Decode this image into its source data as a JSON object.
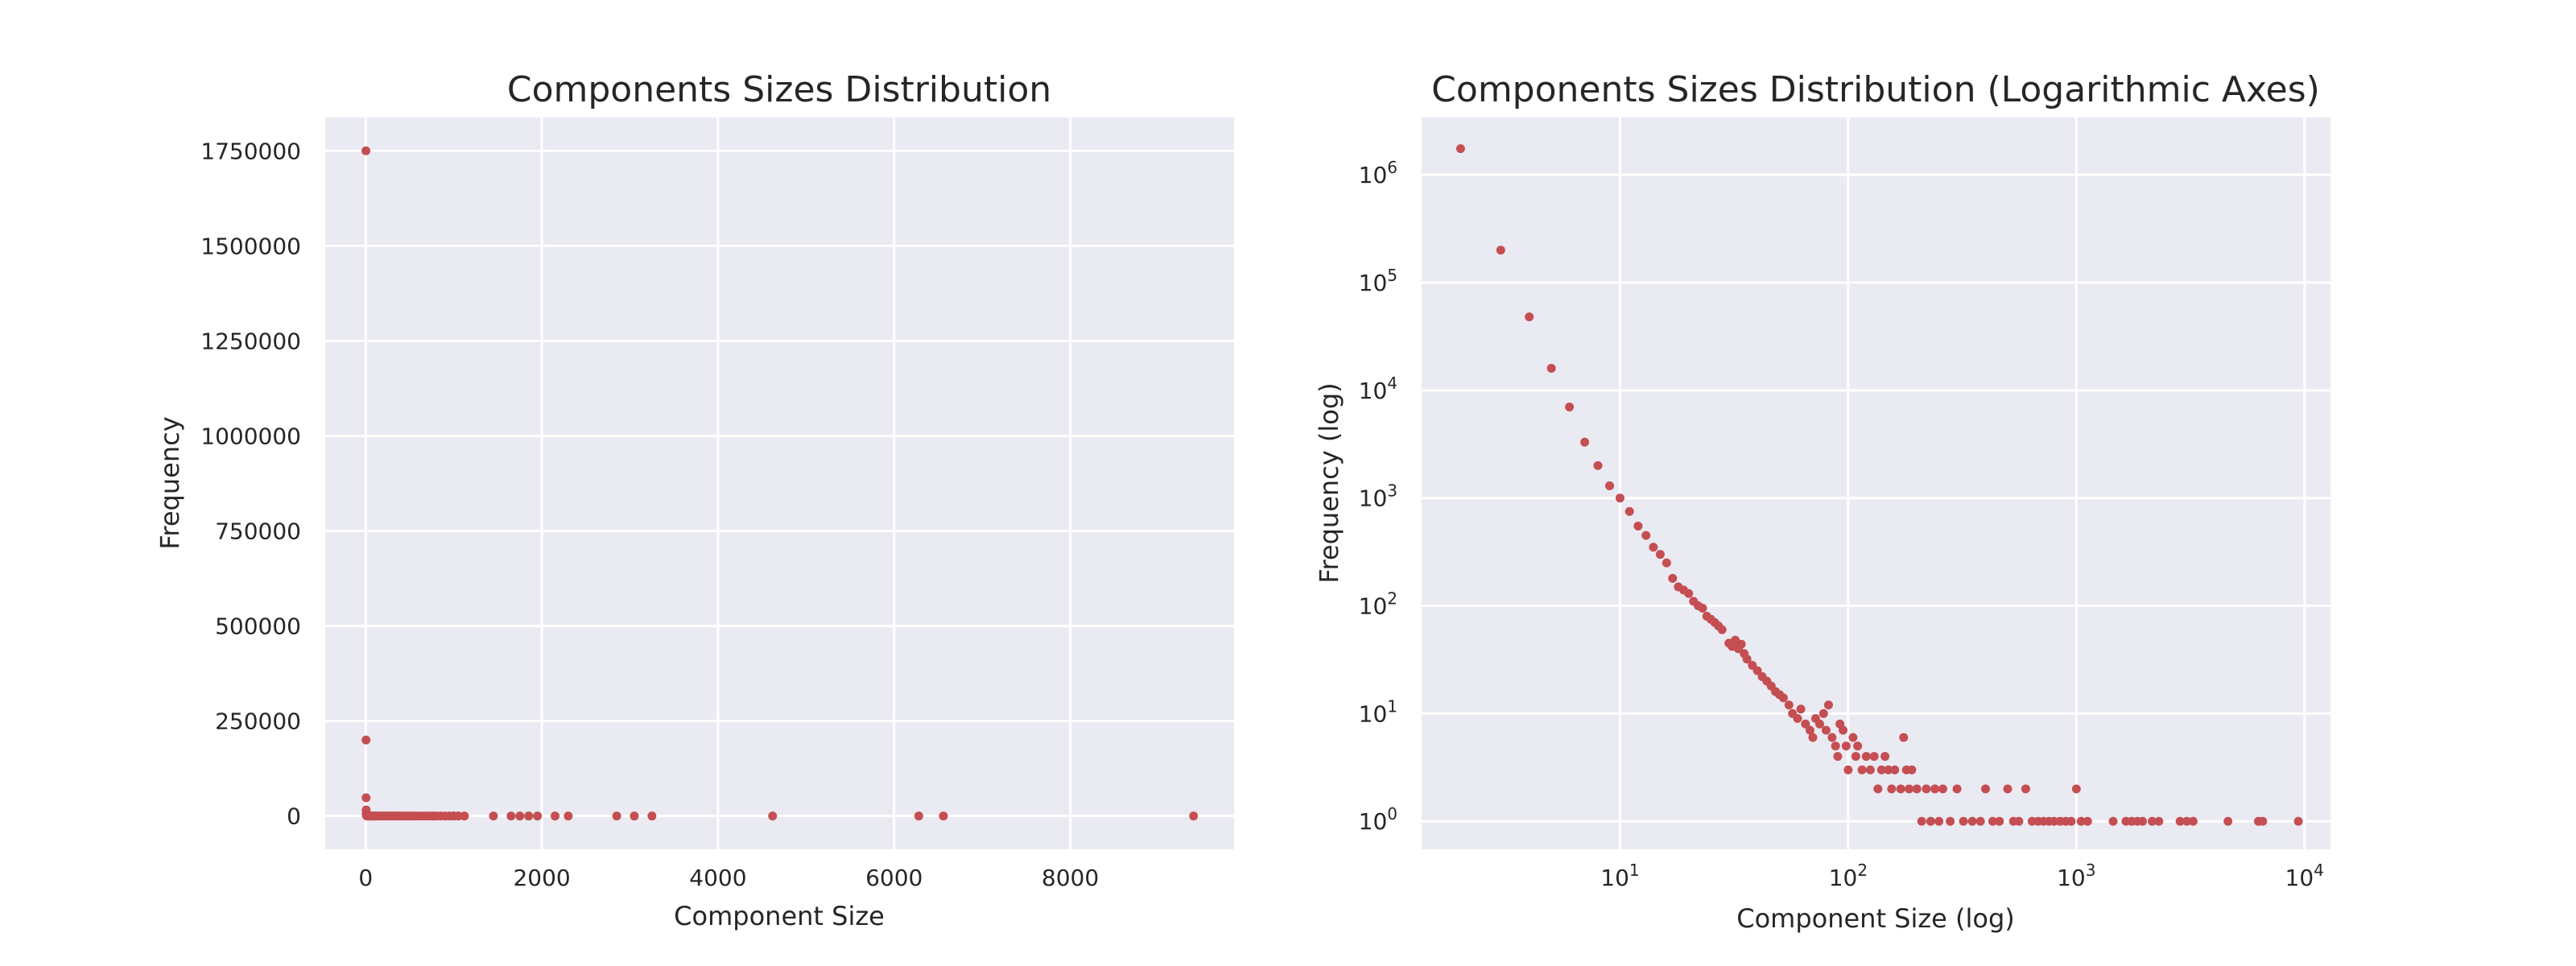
{
  "chart_data": [
    {
      "type": "scatter",
      "title": "Components Sizes Distribution",
      "xlabel": "Component Size",
      "ylabel": "Frequency",
      "xscale": "linear",
      "yscale": "linear",
      "xlim": [
        -460,
        9860
      ],
      "ylim": [
        -87500,
        1837500
      ],
      "xticks": [
        0,
        2000,
        4000,
        6000,
        8000
      ],
      "yticks": [
        0,
        250000,
        500000,
        750000,
        1000000,
        1250000,
        1500000,
        1750000
      ],
      "xtick_labels": [
        "0",
        "2000",
        "4000",
        "6000",
        "8000"
      ],
      "ytick_labels": [
        "0",
        "250000",
        "500000",
        "750000",
        "1000000",
        "1250000",
        "1500000",
        "1750000"
      ],
      "grid": true,
      "color": "#c44e52",
      "points": [
        [
          2,
          1750000
        ],
        [
          3,
          200000
        ],
        [
          4,
          48000
        ],
        [
          5,
          16000
        ],
        [
          6,
          7000
        ],
        [
          7,
          3300
        ],
        [
          8,
          2000
        ],
        [
          9,
          1300
        ],
        [
          10,
          1000
        ],
        [
          11,
          750
        ],
        [
          12,
          550
        ],
        [
          13,
          450
        ],
        [
          14,
          350
        ],
        [
          16,
          250
        ],
        [
          18,
          180
        ],
        [
          20,
          150
        ],
        [
          25,
          100
        ],
        [
          30,
          70
        ],
        [
          40,
          40
        ],
        [
          50,
          25
        ],
        [
          60,
          15
        ],
        [
          70,
          10
        ],
        [
          80,
          10
        ],
        [
          100,
          5
        ],
        [
          120,
          4
        ],
        [
          150,
          3
        ],
        [
          180,
          3
        ],
        [
          200,
          2
        ],
        [
          220,
          2
        ],
        [
          250,
          2
        ],
        [
          280,
          2
        ],
        [
          300,
          2
        ],
        [
          320,
          1
        ],
        [
          350,
          1
        ],
        [
          380,
          1
        ],
        [
          400,
          1
        ],
        [
          430,
          1
        ],
        [
          460,
          1
        ],
        [
          500,
          1
        ],
        [
          530,
          1
        ],
        [
          560,
          1
        ],
        [
          600,
          1
        ],
        [
          640,
          1
        ],
        [
          680,
          1
        ],
        [
          720,
          1
        ],
        [
          760,
          1
        ],
        [
          800,
          1
        ],
        [
          850,
          1
        ],
        [
          900,
          1
        ],
        [
          950,
          1
        ],
        [
          1000,
          2
        ],
        [
          1050,
          1
        ],
        [
          1120,
          1
        ],
        [
          1450,
          1
        ],
        [
          1650,
          1
        ],
        [
          1750,
          1
        ],
        [
          1850,
          1
        ],
        [
          1950,
          1
        ],
        [
          2150,
          1
        ],
        [
          2300,
          1
        ],
        [
          2850,
          1
        ],
        [
          3050,
          1
        ],
        [
          3250,
          1
        ],
        [
          4620,
          1
        ],
        [
          6280,
          1
        ],
        [
          6560,
          1
        ],
        [
          9400,
          1
        ]
      ]
    },
    {
      "type": "scatter",
      "title": "Components Sizes Distribution (Logarithmic Axes)",
      "xlabel": "Component Size (log)",
      "ylabel": "Frequency (log)",
      "xscale": "log",
      "yscale": "log",
      "xlim": [
        1.35,
        13000
      ],
      "ylim": [
        0.55,
        3400000
      ],
      "xticks": [
        10,
        100,
        1000,
        10000
      ],
      "yticks": [
        1,
        10,
        100,
        1000,
        10000,
        100000,
        1000000
      ],
      "xtick_labels": [
        {
          "base": "10",
          "exp": "1"
        },
        {
          "base": "10",
          "exp": "2"
        },
        {
          "base": "10",
          "exp": "3"
        },
        {
          "base": "10",
          "exp": "4"
        }
      ],
      "ytick_labels": [
        {
          "base": "10",
          "exp": "0"
        },
        {
          "base": "10",
          "exp": "1"
        },
        {
          "base": "10",
          "exp": "2"
        },
        {
          "base": "10",
          "exp": "3"
        },
        {
          "base": "10",
          "exp": "4"
        },
        {
          "base": "10",
          "exp": "5"
        },
        {
          "base": "10",
          "exp": "6"
        }
      ],
      "grid": true,
      "color": "#c44e52",
      "points": [
        [
          2,
          1750000
        ],
        [
          3,
          200000
        ],
        [
          4,
          48000
        ],
        [
          5,
          16000
        ],
        [
          6,
          7000
        ],
        [
          7,
          3300
        ],
        [
          8,
          2000
        ],
        [
          9,
          1300
        ],
        [
          10,
          1000
        ],
        [
          11,
          750
        ],
        [
          12,
          550
        ],
        [
          13,
          450
        ],
        [
          14,
          350
        ],
        [
          15,
          300
        ],
        [
          16,
          250
        ],
        [
          17,
          180
        ],
        [
          18,
          150
        ],
        [
          19,
          140
        ],
        [
          20,
          130
        ],
        [
          21,
          110
        ],
        [
          22,
          100
        ],
        [
          23,
          95
        ],
        [
          24,
          80
        ],
        [
          25,
          75
        ],
        [
          26,
          70
        ],
        [
          27,
          65
        ],
        [
          28,
          60
        ],
        [
          30,
          45
        ],
        [
          31,
          42
        ],
        [
          32,
          48
        ],
        [
          33,
          40
        ],
        [
          34,
          44
        ],
        [
          35,
          36
        ],
        [
          36,
          32
        ],
        [
          38,
          28
        ],
        [
          40,
          25
        ],
        [
          42,
          22
        ],
        [
          44,
          20
        ],
        [
          46,
          18
        ],
        [
          48,
          16
        ],
        [
          50,
          15
        ],
        [
          52,
          14
        ],
        [
          55,
          12
        ],
        [
          57,
          10
        ],
        [
          60,
          9
        ],
        [
          62,
          11
        ],
        [
          65,
          8
        ],
        [
          68,
          7
        ],
        [
          70,
          6
        ],
        [
          72,
          9
        ],
        [
          75,
          8
        ],
        [
          78,
          10
        ],
        [
          80,
          7
        ],
        [
          82,
          12
        ],
        [
          85,
          6
        ],
        [
          88,
          5
        ],
        [
          90,
          4
        ],
        [
          92,
          8
        ],
        [
          95,
          7
        ],
        [
          98,
          5
        ],
        [
          100,
          3
        ],
        [
          105,
          6
        ],
        [
          108,
          4
        ],
        [
          110,
          5
        ],
        [
          115,
          3
        ],
        [
          120,
          4
        ],
        [
          125,
          3
        ],
        [
          130,
          4
        ],
        [
          135,
          2
        ],
        [
          140,
          3
        ],
        [
          145,
          4
        ],
        [
          150,
          3
        ],
        [
          155,
          2
        ],
        [
          160,
          3
        ],
        [
          170,
          2
        ],
        [
          175,
          6
        ],
        [
          180,
          3
        ],
        [
          185,
          2
        ],
        [
          190,
          3
        ],
        [
          200,
          2
        ],
        [
          210,
          1
        ],
        [
          220,
          2
        ],
        [
          230,
          1
        ],
        [
          240,
          2
        ],
        [
          250,
          1
        ],
        [
          260,
          2
        ],
        [
          280,
          1
        ],
        [
          300,
          2
        ],
        [
          320,
          1
        ],
        [
          350,
          1
        ],
        [
          380,
          1
        ],
        [
          400,
          2
        ],
        [
          430,
          1
        ],
        [
          460,
          1
        ],
        [
          500,
          2
        ],
        [
          530,
          1
        ],
        [
          560,
          1
        ],
        [
          600,
          2
        ],
        [
          640,
          1
        ],
        [
          680,
          1
        ],
        [
          720,
          1
        ],
        [
          760,
          1
        ],
        [
          800,
          1
        ],
        [
          850,
          1
        ],
        [
          900,
          1
        ],
        [
          950,
          1
        ],
        [
          1000,
          2
        ],
        [
          1050,
          1
        ],
        [
          1120,
          1
        ],
        [
          1450,
          1
        ],
        [
          1650,
          1
        ],
        [
          1750,
          1
        ],
        [
          1850,
          1
        ],
        [
          1950,
          1
        ],
        [
          2150,
          1
        ],
        [
          2300,
          1
        ],
        [
          2850,
          1
        ],
        [
          3050,
          1
        ],
        [
          3250,
          1
        ],
        [
          4620,
          1
        ],
        [
          6280,
          1
        ],
        [
          6560,
          1
        ],
        [
          9400,
          1
        ]
      ]
    }
  ]
}
